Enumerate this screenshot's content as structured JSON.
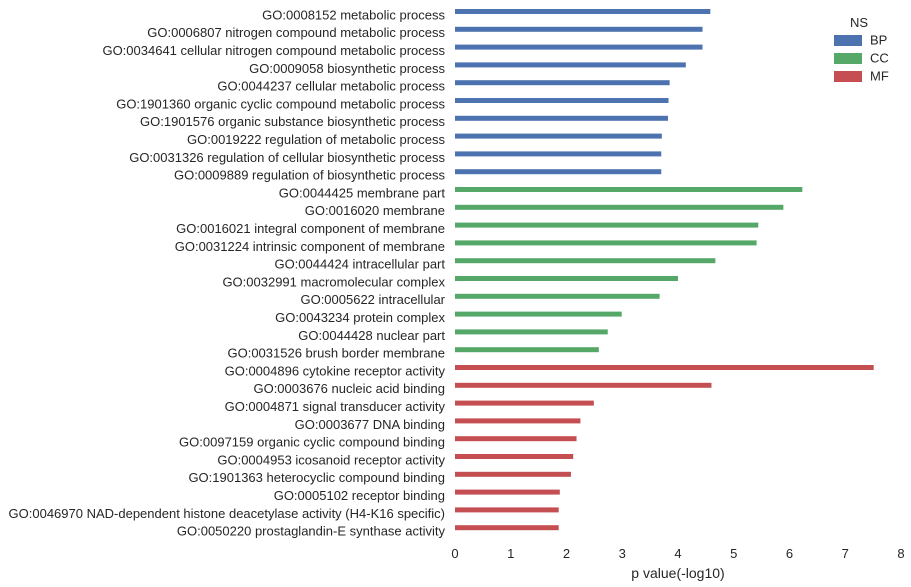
{
  "chart_data": {
    "type": "bar",
    "orientation": "horizontal",
    "xlabel": "p value(-log10)",
    "ylabel": "",
    "title": "",
    "xlim": [
      0,
      8
    ],
    "xticks": [
      0,
      1,
      2,
      3,
      4,
      5,
      6,
      7,
      8
    ],
    "grid": false,
    "legend": {
      "title": "NS",
      "placement": "top-right",
      "entries": [
        {
          "name": "BP",
          "color": "#4c72b0"
        },
        {
          "name": "CC",
          "color": "#55a868"
        },
        {
          "name": "MF",
          "color": "#c44e52"
        }
      ]
    },
    "bars": [
      {
        "label": "GO:0008152 metabolic process",
        "value": 4.58,
        "ns": "BP"
      },
      {
        "label": "GO:0006807 nitrogen compound metabolic process",
        "value": 4.44,
        "ns": "BP"
      },
      {
        "label": "GO:0034641 cellular nitrogen compound metabolic process",
        "value": 4.44,
        "ns": "BP"
      },
      {
        "label": "GO:0009058 biosynthetic process",
        "value": 4.14,
        "ns": "BP"
      },
      {
        "label": "GO:0044237 cellular metabolic process",
        "value": 3.85,
        "ns": "BP"
      },
      {
        "label": "GO:1901360 organic cyclic compound metabolic process",
        "value": 3.83,
        "ns": "BP"
      },
      {
        "label": "GO:1901576 organic substance biosynthetic process",
        "value": 3.82,
        "ns": "BP"
      },
      {
        "label": "GO:0019222 regulation of metabolic process",
        "value": 3.71,
        "ns": "BP"
      },
      {
        "label": "GO:0031326 regulation of cellular biosynthetic process",
        "value": 3.7,
        "ns": "BP"
      },
      {
        "label": "GO:0009889 regulation of biosynthetic process",
        "value": 3.7,
        "ns": "BP"
      },
      {
        "label": "GO:0044425 membrane part",
        "value": 6.23,
        "ns": "CC"
      },
      {
        "label": "GO:0016020 membrane",
        "value": 5.89,
        "ns": "CC"
      },
      {
        "label": "GO:0016021 integral component of membrane",
        "value": 5.44,
        "ns": "CC"
      },
      {
        "label": "GO:0031224 intrinsic component of membrane",
        "value": 5.41,
        "ns": "CC"
      },
      {
        "label": "GO:0044424 intracellular part",
        "value": 4.67,
        "ns": "CC"
      },
      {
        "label": "GO:0032991 macromolecular complex",
        "value": 4.0,
        "ns": "CC"
      },
      {
        "label": "GO:0005622 intracellular",
        "value": 3.67,
        "ns": "CC"
      },
      {
        "label": "GO:0043234 protein complex",
        "value": 2.99,
        "ns": "CC"
      },
      {
        "label": "GO:0044428 nuclear part",
        "value": 2.74,
        "ns": "CC"
      },
      {
        "label": "GO:0031526 brush border membrane",
        "value": 2.58,
        "ns": "CC"
      },
      {
        "label": "GO:0004896 cytokine receptor activity",
        "value": 7.51,
        "ns": "MF"
      },
      {
        "label": "GO:0003676 nucleic acid binding",
        "value": 4.6,
        "ns": "MF"
      },
      {
        "label": "GO:0004871 signal transducer activity",
        "value": 2.49,
        "ns": "MF"
      },
      {
        "label": "GO:0003677 DNA binding",
        "value": 2.25,
        "ns": "MF"
      },
      {
        "label": "GO:0097159 organic cyclic compound binding",
        "value": 2.18,
        "ns": "MF"
      },
      {
        "label": "GO:0004953 icosanoid receptor activity",
        "value": 2.12,
        "ns": "MF"
      },
      {
        "label": "GO:1901363 heterocyclic compound binding",
        "value": 2.08,
        "ns": "MF"
      },
      {
        "label": "GO:0005102 receptor binding",
        "value": 1.88,
        "ns": "MF"
      },
      {
        "label": "GO:0046970 NAD-dependent histone deacetylase activity (H4-K16 specific)",
        "value": 1.86,
        "ns": "MF"
      },
      {
        "label": "GO:0050220 prostaglandin-E synthase activity",
        "value": 1.86,
        "ns": "MF"
      }
    ]
  }
}
